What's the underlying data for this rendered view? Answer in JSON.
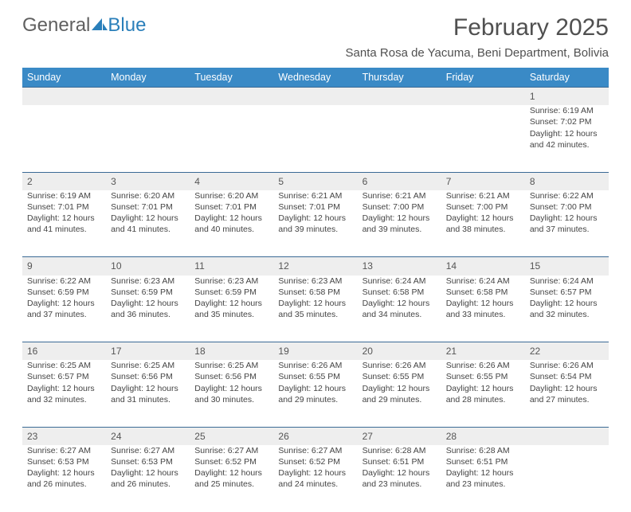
{
  "logo": {
    "text1": "General",
    "text2": "Blue"
  },
  "title": "February 2025",
  "location": "Santa Rosa de Yacuma, Beni Department, Bolivia",
  "colors": {
    "header_bg": "#3a8ac6",
    "header_text": "#ffffff",
    "daynum_bg": "#eeeeee",
    "rule": "#3a6a95",
    "body_text": "#404040",
    "background": "#ffffff",
    "logo_gray": "#606060",
    "logo_blue": "#2a7fba"
  },
  "fonts": {
    "title_size": 30,
    "location_size": 15,
    "header_size": 12.5,
    "cell_size": 10.5,
    "daynum_size": 12
  },
  "weekdays": [
    "Sunday",
    "Monday",
    "Tuesday",
    "Wednesday",
    "Thursday",
    "Friday",
    "Saturday"
  ],
  "weeks": [
    [
      null,
      null,
      null,
      null,
      null,
      null,
      {
        "n": "1",
        "sr": "Sunrise: 6:19 AM",
        "ss": "Sunset: 7:02 PM",
        "d1": "Daylight: 12 hours",
        "d2": "and 42 minutes."
      }
    ],
    [
      {
        "n": "2",
        "sr": "Sunrise: 6:19 AM",
        "ss": "Sunset: 7:01 PM",
        "d1": "Daylight: 12 hours",
        "d2": "and 41 minutes."
      },
      {
        "n": "3",
        "sr": "Sunrise: 6:20 AM",
        "ss": "Sunset: 7:01 PM",
        "d1": "Daylight: 12 hours",
        "d2": "and 41 minutes."
      },
      {
        "n": "4",
        "sr": "Sunrise: 6:20 AM",
        "ss": "Sunset: 7:01 PM",
        "d1": "Daylight: 12 hours",
        "d2": "and 40 minutes."
      },
      {
        "n": "5",
        "sr": "Sunrise: 6:21 AM",
        "ss": "Sunset: 7:01 PM",
        "d1": "Daylight: 12 hours",
        "d2": "and 39 minutes."
      },
      {
        "n": "6",
        "sr": "Sunrise: 6:21 AM",
        "ss": "Sunset: 7:00 PM",
        "d1": "Daylight: 12 hours",
        "d2": "and 39 minutes."
      },
      {
        "n": "7",
        "sr": "Sunrise: 6:21 AM",
        "ss": "Sunset: 7:00 PM",
        "d1": "Daylight: 12 hours",
        "d2": "and 38 minutes."
      },
      {
        "n": "8",
        "sr": "Sunrise: 6:22 AM",
        "ss": "Sunset: 7:00 PM",
        "d1": "Daylight: 12 hours",
        "d2": "and 37 minutes."
      }
    ],
    [
      {
        "n": "9",
        "sr": "Sunrise: 6:22 AM",
        "ss": "Sunset: 6:59 PM",
        "d1": "Daylight: 12 hours",
        "d2": "and 37 minutes."
      },
      {
        "n": "10",
        "sr": "Sunrise: 6:23 AM",
        "ss": "Sunset: 6:59 PM",
        "d1": "Daylight: 12 hours",
        "d2": "and 36 minutes."
      },
      {
        "n": "11",
        "sr": "Sunrise: 6:23 AM",
        "ss": "Sunset: 6:59 PM",
        "d1": "Daylight: 12 hours",
        "d2": "and 35 minutes."
      },
      {
        "n": "12",
        "sr": "Sunrise: 6:23 AM",
        "ss": "Sunset: 6:58 PM",
        "d1": "Daylight: 12 hours",
        "d2": "and 35 minutes."
      },
      {
        "n": "13",
        "sr": "Sunrise: 6:24 AM",
        "ss": "Sunset: 6:58 PM",
        "d1": "Daylight: 12 hours",
        "d2": "and 34 minutes."
      },
      {
        "n": "14",
        "sr": "Sunrise: 6:24 AM",
        "ss": "Sunset: 6:58 PM",
        "d1": "Daylight: 12 hours",
        "d2": "and 33 minutes."
      },
      {
        "n": "15",
        "sr": "Sunrise: 6:24 AM",
        "ss": "Sunset: 6:57 PM",
        "d1": "Daylight: 12 hours",
        "d2": "and 32 minutes."
      }
    ],
    [
      {
        "n": "16",
        "sr": "Sunrise: 6:25 AM",
        "ss": "Sunset: 6:57 PM",
        "d1": "Daylight: 12 hours",
        "d2": "and 32 minutes."
      },
      {
        "n": "17",
        "sr": "Sunrise: 6:25 AM",
        "ss": "Sunset: 6:56 PM",
        "d1": "Daylight: 12 hours",
        "d2": "and 31 minutes."
      },
      {
        "n": "18",
        "sr": "Sunrise: 6:25 AM",
        "ss": "Sunset: 6:56 PM",
        "d1": "Daylight: 12 hours",
        "d2": "and 30 minutes."
      },
      {
        "n": "19",
        "sr": "Sunrise: 6:26 AM",
        "ss": "Sunset: 6:55 PM",
        "d1": "Daylight: 12 hours",
        "d2": "and 29 minutes."
      },
      {
        "n": "20",
        "sr": "Sunrise: 6:26 AM",
        "ss": "Sunset: 6:55 PM",
        "d1": "Daylight: 12 hours",
        "d2": "and 29 minutes."
      },
      {
        "n": "21",
        "sr": "Sunrise: 6:26 AM",
        "ss": "Sunset: 6:55 PM",
        "d1": "Daylight: 12 hours",
        "d2": "and 28 minutes."
      },
      {
        "n": "22",
        "sr": "Sunrise: 6:26 AM",
        "ss": "Sunset: 6:54 PM",
        "d1": "Daylight: 12 hours",
        "d2": "and 27 minutes."
      }
    ],
    [
      {
        "n": "23",
        "sr": "Sunrise: 6:27 AM",
        "ss": "Sunset: 6:53 PM",
        "d1": "Daylight: 12 hours",
        "d2": "and 26 minutes."
      },
      {
        "n": "24",
        "sr": "Sunrise: 6:27 AM",
        "ss": "Sunset: 6:53 PM",
        "d1": "Daylight: 12 hours",
        "d2": "and 26 minutes."
      },
      {
        "n": "25",
        "sr": "Sunrise: 6:27 AM",
        "ss": "Sunset: 6:52 PM",
        "d1": "Daylight: 12 hours",
        "d2": "and 25 minutes."
      },
      {
        "n": "26",
        "sr": "Sunrise: 6:27 AM",
        "ss": "Sunset: 6:52 PM",
        "d1": "Daylight: 12 hours",
        "d2": "and 24 minutes."
      },
      {
        "n": "27",
        "sr": "Sunrise: 6:28 AM",
        "ss": "Sunset: 6:51 PM",
        "d1": "Daylight: 12 hours",
        "d2": "and 23 minutes."
      },
      {
        "n": "28",
        "sr": "Sunrise: 6:28 AM",
        "ss": "Sunset: 6:51 PM",
        "d1": "Daylight: 12 hours",
        "d2": "and 23 minutes."
      },
      null
    ]
  ]
}
